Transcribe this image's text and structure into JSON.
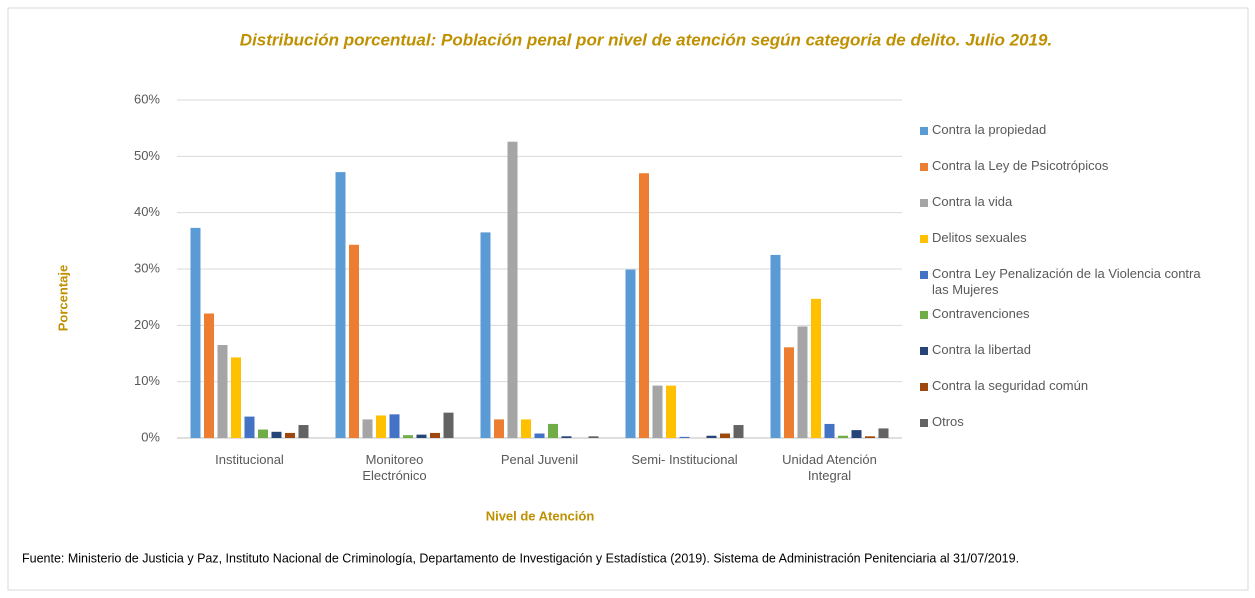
{
  "chart_data": {
    "type": "bar",
    "title": "Distribución porcentual: Población penal por nivel de atención según categoria de delito. Julio 2019.",
    "x_label": "Nivel de Atención",
    "y_label": "Porcentaje",
    "source": "Fuente: Ministerio de Justicia y Paz, Instituto Nacional de Criminología, Departamento de Investigación y Estadística (2019). Sistema de Administración Penitenciaria al 31/07/2019.",
    "categories": [
      "Institucional",
      "Monitoreo Electrónico",
      "Penal Juvenil",
      "Semi- Institucional",
      "Unidad Atención Integral"
    ],
    "series": [
      {
        "name": "Contra la propiedad",
        "color": "#5b9bd5",
        "values": [
          37.3,
          47.2,
          36.5,
          29.9,
          32.5
        ]
      },
      {
        "name": "Contra la Ley de Psicotrópicos",
        "color": "#ed7d31",
        "values": [
          22.1,
          34.3,
          3.3,
          47.0,
          16.1
        ]
      },
      {
        "name": "Contra la vida",
        "color": "#a5a5a5",
        "values": [
          16.5,
          3.3,
          52.6,
          9.3,
          19.8
        ]
      },
      {
        "name": "Delitos sexuales",
        "color": "#ffc000",
        "values": [
          14.3,
          4.0,
          3.3,
          9.3,
          24.7
        ]
      },
      {
        "name": "Contra Ley Penalización de la Violencia contra las Mujeres",
        "color": "#4472c4",
        "values": [
          3.8,
          4.2,
          0.8,
          0.2,
          2.5
        ]
      },
      {
        "name": "Contravenciones",
        "color": "#70ad47",
        "values": [
          1.5,
          0.5,
          2.5,
          0,
          0.4
        ]
      },
      {
        "name": "Contra la libertad",
        "color": "#264478",
        "values": [
          1.1,
          0.6,
          0.3,
          0.4,
          1.4
        ]
      },
      {
        "name": "Contra la seguridad común",
        "color": "#9e480e",
        "values": [
          0.9,
          0.9,
          0,
          0.8,
          0.3
        ]
      },
      {
        "name": "Otros",
        "color": "#636363",
        "values": [
          2.3,
          4.5,
          0.3,
          2.3,
          1.7
        ]
      }
    ],
    "ylim": [
      0,
      60
    ],
    "yticks": [
      {
        "value": 0,
        "label": "0%"
      },
      {
        "value": 10,
        "label": "10%"
      },
      {
        "value": 20,
        "label": "20%"
      },
      {
        "value": 30,
        "label": "30%"
      },
      {
        "value": 40,
        "label": "40%"
      },
      {
        "value": 50,
        "label": "50%"
      },
      {
        "value": 60,
        "label": "60%"
      }
    ],
    "grid": true,
    "legend": "right"
  }
}
